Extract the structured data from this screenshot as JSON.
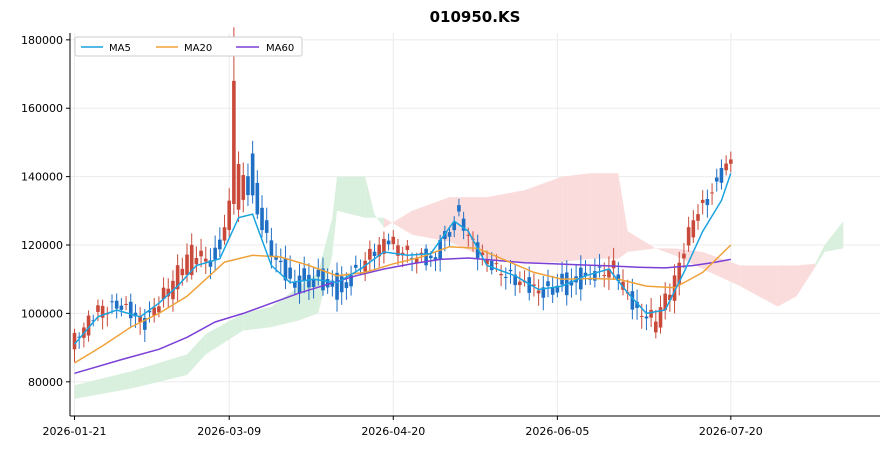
{
  "chart_data": {
    "type": "candlestick",
    "title": "010950.KS",
    "xlabel": "",
    "ylabel": "",
    "ylim": [
      70000,
      182000
    ],
    "yticks": [
      80000,
      100000,
      120000,
      140000,
      160000,
      180000
    ],
    "xticks": [
      "2026-01-21",
      "2026-03-09",
      "2026-04-20",
      "2026-06-05",
      "2026-07-20"
    ],
    "grid": true,
    "legend_position": "top-left",
    "colors": {
      "up": "#c94a3a",
      "down": "#1f6fc5",
      "ma5": "#1aa3e0",
      "ma20": "#f0a23a",
      "ma60": "#7b3fd6",
      "cloud_bull": "#d8efdc",
      "cloud_bear": "#fbdada"
    },
    "legend": [
      {
        "label": "MA5",
        "color": "#1aa3e0"
      },
      {
        "label": "MA20",
        "color": "#f0a23a"
      },
      {
        "label": "MA60",
        "color": "#7b3fd6"
      }
    ],
    "ohlc_anchors": [
      [
        0,
        89500,
        92500
      ],
      [
        5,
        99000,
        101500
      ],
      [
        10,
        104000,
        102000
      ],
      [
        15,
        98000,
        97000
      ],
      [
        20,
        104000,
        108000
      ],
      [
        25,
        113000,
        119000
      ],
      [
        30,
        118000,
        114000
      ],
      [
        35,
        130000,
        143000
      ],
      [
        38,
        145000,
        133000
      ],
      [
        42,
        120000,
        118000
      ],
      [
        47,
        111000,
        107000
      ],
      [
        52,
        112000,
        109000
      ],
      [
        57,
        110000,
        105000
      ],
      [
        62,
        114000,
        116000
      ],
      [
        67,
        120000,
        122000
      ],
      [
        72,
        116000,
        117000
      ],
      [
        77,
        118000,
        115000
      ],
      [
        82,
        130000,
        128000
      ],
      [
        86,
        119000,
        118000
      ],
      [
        90,
        113000,
        113000
      ],
      [
        95,
        110000,
        109000
      ],
      [
        100,
        107000,
        106000
      ],
      [
        105,
        111000,
        107000
      ],
      [
        110,
        112000,
        110000
      ],
      [
        115,
        112000,
        114000
      ],
      [
        120,
        103000,
        100000
      ],
      [
        124,
        95000,
        99000
      ],
      [
        128,
        105000,
        110000
      ],
      [
        132,
        124000,
        128000
      ],
      [
        136,
        137000,
        135000
      ],
      [
        140,
        145000,
        145000
      ]
    ],
    "ma5": [
      [
        0,
        91000
      ],
      [
        5,
        99000
      ],
      [
        9,
        101000
      ],
      [
        14,
        99000
      ],
      [
        18,
        103000
      ],
      [
        22,
        108000
      ],
      [
        26,
        114000
      ],
      [
        31,
        116000
      ],
      [
        35,
        128000
      ],
      [
        38,
        129000
      ],
      [
        42,
        114000
      ],
      [
        46,
        109000
      ],
      [
        51,
        110000
      ],
      [
        56,
        109000
      ],
      [
        61,
        113000
      ],
      [
        66,
        118000
      ],
      [
        71,
        117000
      ],
      [
        76,
        117500
      ],
      [
        81,
        127000
      ],
      [
        84,
        124000
      ],
      [
        88,
        114000
      ],
      [
        94,
        111000
      ],
      [
        99,
        107000
      ],
      [
        104,
        108000
      ],
      [
        109,
        111000
      ],
      [
        114,
        113000
      ],
      [
        118,
        106000
      ],
      [
        122,
        100000
      ],
      [
        126,
        101000
      ],
      [
        130,
        112000
      ],
      [
        134,
        124000
      ],
      [
        138,
        133000
      ],
      [
        140,
        141000
      ]
    ],
    "ma20": [
      [
        0,
        85500
      ],
      [
        6,
        90500
      ],
      [
        12,
        96000
      ],
      [
        18,
        100000
      ],
      [
        24,
        105000
      ],
      [
        28,
        110000
      ],
      [
        32,
        115000
      ],
      [
        38,
        117000
      ],
      [
        44,
        116500
      ],
      [
        50,
        114000
      ],
      [
        56,
        111000
      ],
      [
        62,
        112000
      ],
      [
        68,
        114500
      ],
      [
        74,
        116500
      ],
      [
        80,
        119500
      ],
      [
        86,
        119000
      ],
      [
        92,
        115500
      ],
      [
        98,
        112000
      ],
      [
        104,
        110000
      ],
      [
        110,
        110200
      ],
      [
        116,
        110000
      ],
      [
        122,
        108000
      ],
      [
        128,
        107500
      ],
      [
        134,
        112000
      ],
      [
        140,
        120000
      ]
    ],
    "ma60": [
      [
        0,
        82500
      ],
      [
        10,
        86500
      ],
      [
        18,
        89500
      ],
      [
        24,
        93000
      ],
      [
        30,
        97500
      ],
      [
        36,
        100000
      ],
      [
        42,
        103000
      ],
      [
        48,
        106000
      ],
      [
        54,
        108500
      ],
      [
        60,
        111000
      ],
      [
        66,
        113000
      ],
      [
        72,
        114500
      ],
      [
        78,
        115800
      ],
      [
        84,
        116200
      ],
      [
        90,
        115500
      ],
      [
        96,
        114800
      ],
      [
        102,
        114500
      ],
      [
        108,
        114200
      ],
      [
        114,
        113900
      ],
      [
        120,
        113500
      ],
      [
        126,
        113300
      ],
      [
        132,
        114000
      ],
      [
        136,
        114800
      ],
      [
        140,
        115800
      ]
    ],
    "cloud": [
      [
        0,
        75000,
        79000,
        "bull"
      ],
      [
        12,
        78000,
        83000,
        "bull"
      ],
      [
        24,
        82000,
        88000,
        "bull"
      ],
      [
        28,
        88000,
        94000,
        "bull"
      ],
      [
        36,
        95000,
        100000,
        "bull"
      ],
      [
        42,
        96000,
        102000,
        "bull"
      ],
      [
        48,
        98000,
        108000,
        "bull"
      ],
      [
        52,
        100000,
        112000,
        "bull"
      ],
      [
        55,
        117000,
        128000,
        "bull"
      ],
      [
        56,
        130000,
        140000,
        "bull"
      ],
      [
        62,
        128000,
        140000,
        "bull"
      ],
      [
        64,
        128000,
        129000,
        "bull"
      ],
      [
        66,
        128000,
        125000,
        "bear"
      ],
      [
        72,
        123000,
        130000,
        "bear"
      ],
      [
        80,
        121000,
        134000,
        "bear"
      ],
      [
        88,
        116000,
        134000,
        "bear"
      ],
      [
        96,
        115000,
        136000,
        "bear"
      ],
      [
        104,
        115000,
        140000,
        "bear"
      ],
      [
        110,
        116000,
        141000,
        "bear"
      ],
      [
        116,
        116000,
        141000,
        "bear"
      ],
      [
        118,
        118000,
        124000,
        "bear"
      ],
      [
        124,
        119000,
        119000,
        "bear"
      ],
      [
        128,
        117000,
        119000,
        "bear"
      ],
      [
        134,
        113000,
        118000,
        "bear"
      ],
      [
        142,
        108000,
        114000,
        "bear"
      ],
      [
        150,
        102000,
        114000,
        "bear"
      ],
      [
        154,
        105000,
        114000,
        "bear"
      ],
      [
        158,
        113500,
        114500,
        "bull"
      ],
      [
        160,
        118000,
        120000,
        "bull"
      ],
      [
        164,
        119000,
        127000,
        "bull"
      ]
    ]
  }
}
